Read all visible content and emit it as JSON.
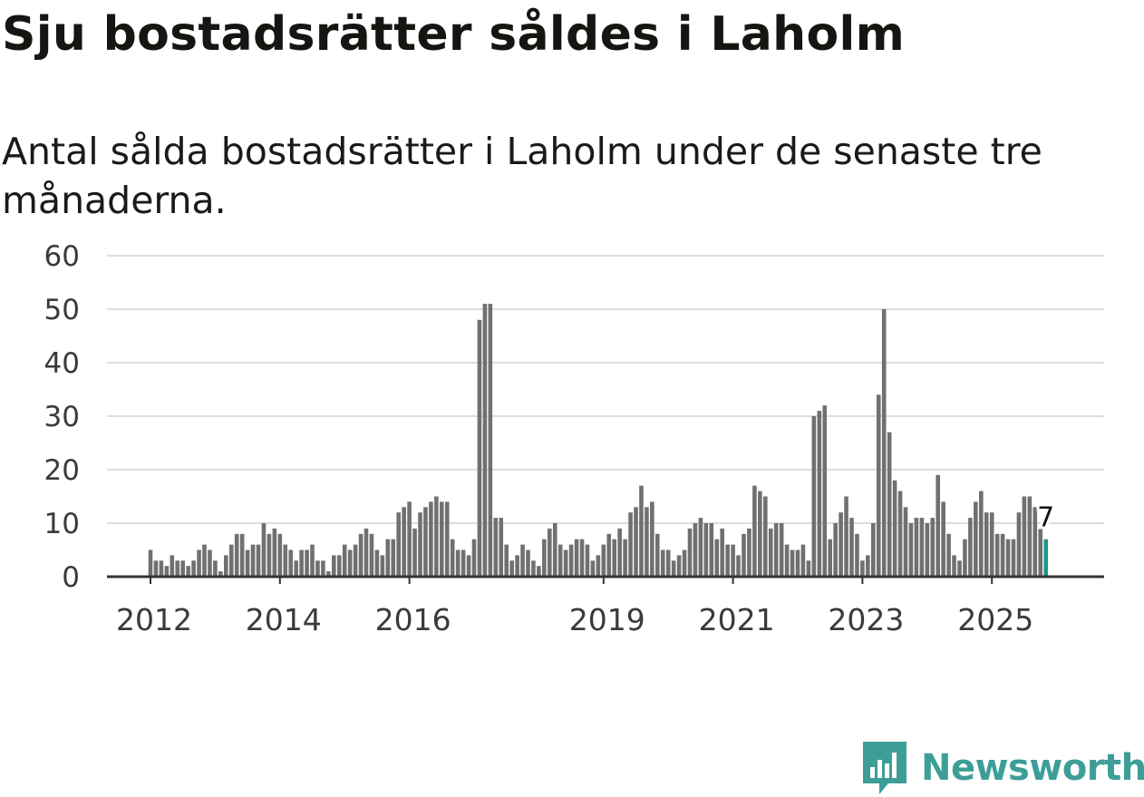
{
  "title": "Sju bostadsrätter såldes i Laholm",
  "subtitle": "Antal sålda bostadsrätter i Laholm under de senaste tre månaderna.",
  "brand": {
    "name": "Newsworthy",
    "color": "#3d9e98"
  },
  "colors": {
    "bar": "#707073",
    "highlight": "#1a9a8c",
    "grid": "#dddddd",
    "axis": "#333333"
  },
  "chart_data": {
    "type": "bar",
    "title": "Antal sålda bostadsrätter i Laholm under de senaste tre månaderna.",
    "xlabel": "",
    "ylabel": "",
    "ylim": [
      0,
      60
    ],
    "y_ticks": [
      0,
      10,
      20,
      30,
      40,
      50,
      60
    ],
    "x_ticks": [
      {
        "label": "2012",
        "index": 0
      },
      {
        "label": "2014",
        "index": 24
      },
      {
        "label": "2016",
        "index": 48
      },
      {
        "label": "2019",
        "index": 84
      },
      {
        "label": "2021",
        "index": 108
      },
      {
        "label": "2023",
        "index": 132
      },
      {
        "label": "2025",
        "index": 156
      }
    ],
    "start": "2012-01",
    "frequency": "monthly",
    "values": [
      5,
      3,
      3,
      2,
      4,
      3,
      3,
      2,
      3,
      5,
      6,
      5,
      3,
      1,
      4,
      6,
      8,
      8,
      5,
      6,
      6,
      10,
      8,
      9,
      8,
      6,
      5,
      3,
      5,
      5,
      6,
      3,
      3,
      1,
      4,
      4,
      6,
      5,
      6,
      8,
      9,
      8,
      5,
      4,
      7,
      7,
      12,
      13,
      14,
      9,
      12,
      13,
      14,
      15,
      14,
      14,
      7,
      5,
      5,
      4,
      7,
      48,
      51,
      51,
      11,
      11,
      6,
      3,
      4,
      6,
      5,
      3,
      2,
      7,
      9,
      10,
      6,
      5,
      6,
      7,
      7,
      6,
      3,
      4,
      6,
      8,
      7,
      9,
      7,
      12,
      13,
      17,
      13,
      14,
      8,
      5,
      5,
      3,
      4,
      5,
      9,
      10,
      11,
      10,
      10,
      7,
      9,
      6,
      6,
      4,
      8,
      9,
      17,
      16,
      15,
      9,
      10,
      10,
      6,
      5,
      5,
      6,
      3,
      30,
      31,
      32,
      7,
      10,
      12,
      15,
      11,
      8,
      3,
      4,
      10,
      34,
      50,
      27,
      18,
      16,
      13,
      10,
      11,
      11,
      10,
      11,
      19,
      14,
      8,
      4,
      3,
      7,
      11,
      14,
      16,
      12,
      12,
      8,
      8,
      7,
      7,
      12,
      15,
      15,
      13,
      9,
      7
    ],
    "highlight_index": 166,
    "highlight_label": "7",
    "grid": true
  }
}
